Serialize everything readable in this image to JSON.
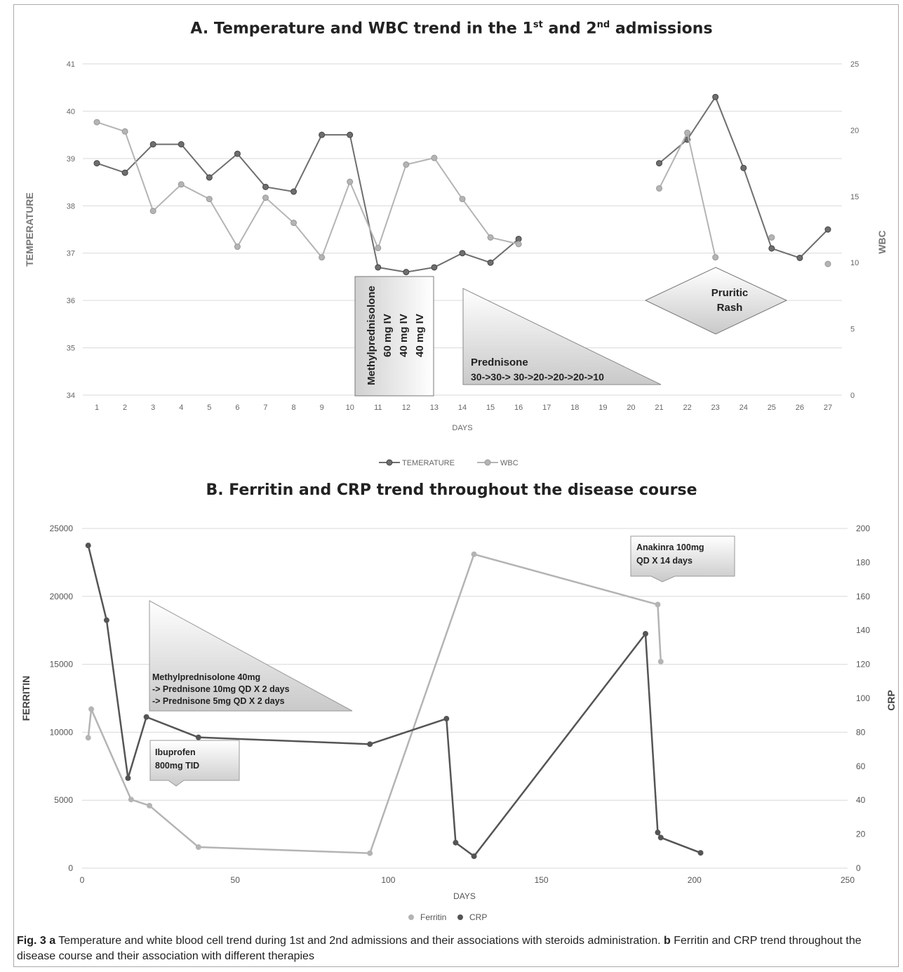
{
  "chart_data": [
    {
      "type": "line",
      "title_main": "A. Temperature and WBC trend in the 1",
      "title_sup1": "st",
      "title_mid": " and 2",
      "title_sup2": "nd",
      "title_end": " admissions",
      "xlabel": "DAYS",
      "ylabel": "TEMPERATURE",
      "y2label": "WBC",
      "categories": [
        "1",
        "2",
        "3",
        "4",
        "5",
        "6",
        "7",
        "8",
        "9",
        "10",
        "11",
        "12",
        "13",
        "14",
        "15",
        "16",
        "17",
        "18",
        "19",
        "20",
        "21",
        "22",
        "23",
        "24",
        "25",
        "26",
        "27"
      ],
      "ylim": [
        34,
        41
      ],
      "y_ticks": [
        34,
        35,
        36,
        37,
        38,
        39,
        40,
        41
      ],
      "y2lim": [
        0,
        25
      ],
      "y2_ticks": [
        0,
        5,
        10,
        15,
        20,
        25
      ],
      "grid": true,
      "legend_position": "bottom",
      "series": [
        {
          "name": "TEMERATURE",
          "axis": "left",
          "color": "#6e6e6e",
          "values": [
            38.9,
            38.7,
            39.3,
            39.3,
            38.6,
            39.1,
            38.4,
            38.3,
            39.5,
            39.5,
            36.7,
            36.6,
            36.7,
            37.0,
            36.8,
            37.3,
            null,
            null,
            null,
            null,
            38.9,
            39.4,
            40.3,
            38.8,
            37.1,
            36.9,
            37.5
          ]
        },
        {
          "name": "WBC",
          "axis": "right",
          "color": "#b4b4b4",
          "values": [
            20.6,
            19.9,
            13.9,
            15.9,
            14.8,
            11.2,
            14.9,
            13.0,
            10.4,
            16.1,
            11.1,
            17.4,
            17.9,
            14.8,
            11.9,
            11.4,
            null,
            null,
            null,
            null,
            15.6,
            19.8,
            10.4,
            null,
            11.9,
            null,
            9.9
          ]
        }
      ],
      "annotations": {
        "methyl_lines": [
          "Methylprednisolone",
          "60 mg IV",
          "40 mg IV",
          "40 mg IV"
        ],
        "prednisone_lines": [
          "Prednisone",
          "30->30-> 30->20->20->20->10"
        ],
        "rash_lines": [
          "Pruritic",
          "Rash"
        ]
      }
    },
    {
      "type": "scatter",
      "title": "B. Ferritin and CRP trend throughout the disease course",
      "xlabel": "DAYS",
      "ylabel": "FERRITIN",
      "y2label": "CRP",
      "xlim": [
        0,
        250
      ],
      "x_ticks": [
        0,
        50,
        100,
        150,
        200,
        250
      ],
      "ylim": [
        0,
        25000
      ],
      "y_ticks": [
        0,
        5000,
        10000,
        15000,
        20000,
        25000
      ],
      "y2lim": [
        0,
        200
      ],
      "y2_ticks": [
        0,
        20,
        40,
        60,
        80,
        100,
        120,
        140,
        160,
        180,
        200
      ],
      "grid": true,
      "legend_position": "bottom",
      "series": [
        {
          "name": "Ferritin",
          "axis": "left",
          "color": "#b4b4b4",
          "x": [
            2,
            3,
            16,
            22,
            38,
            94,
            128,
            188,
            189
          ],
          "y": [
            9600,
            11700,
            5050,
            4600,
            1550,
            1100,
            23100,
            19400,
            15200
          ]
        },
        {
          "name": "CRP",
          "axis": "right",
          "color": "#555555",
          "x": [
            2,
            8,
            15,
            21,
            38,
            94,
            119,
            122,
            128,
            184,
            188,
            189,
            202
          ],
          "y": [
            190,
            146,
            53,
            89,
            77,
            73,
            88,
            15,
            7,
            138,
            21,
            18,
            9
          ]
        }
      ],
      "annotations": {
        "methyl_lines": [
          "Methylprednisolone 40mg",
          "-> Prednisone 10mg QD X 2 days",
          "-> Prednisone 5mg QD X 2 days"
        ],
        "ibuprofen_lines": [
          "Ibuprofen",
          "800mg TID"
        ],
        "anakinra_lines": [
          "Anakinra 100mg",
          "QD X 14 days"
        ]
      }
    }
  ],
  "caption": {
    "a_label": "Fig. 3 a",
    "a_text": " Temperature and white blood cell trend during 1st and 2nd admissions and their associations with steroids administration. ",
    "b_label": "b",
    "b_text": " Ferritin and CRP trend throughout the disease course and their association with different therapies"
  }
}
